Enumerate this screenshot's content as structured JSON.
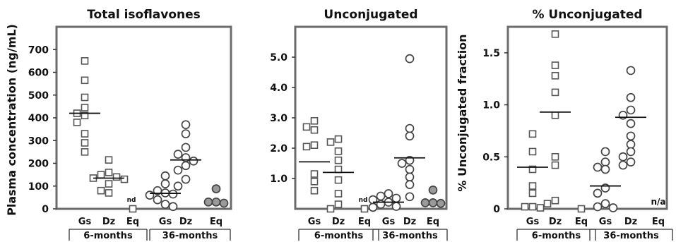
{
  "chart_data": [
    {
      "type": "scatter",
      "title": "Total isoflavones",
      "ylabel": "Plasma concentration (ng/mL)",
      "ylim": [
        0,
        800
      ],
      "yticks": [
        "0",
        "100",
        "200",
        "300",
        "400",
        "500",
        "600",
        "700"
      ],
      "groups": [
        "6-months",
        "36-months"
      ],
      "categories": [
        {
          "label": "Gs",
          "group": "6-months",
          "marker": "square",
          "median": 420,
          "values": [
            650,
            565,
            490,
            445,
            420,
            410,
            380,
            330,
            290,
            250
          ],
          "note": ""
        },
        {
          "label": "Dz",
          "group": "6-months",
          "marker": "square",
          "median": 135,
          "values": [
            215,
            160,
            150,
            140,
            135,
            130,
            110,
            80,
            70
          ],
          "note": ""
        },
        {
          "label": "Eq",
          "group": "6-months",
          "marker": "square",
          "median": null,
          "values": [
            0
          ],
          "note": "nd"
        },
        {
          "label": "Gs",
          "group": "36-months",
          "marker": "circle",
          "median": 68,
          "values": [
            145,
            110,
            80,
            70,
            65,
            60,
            40,
            20,
            10
          ],
          "note": ""
        },
        {
          "label": "Dz",
          "group": "36-months",
          "marker": "circle",
          "median": 215,
          "values": [
            370,
            330,
            270,
            240,
            225,
            210,
            190,
            170,
            130,
            100
          ],
          "note": ""
        },
        {
          "label": "Eq",
          "group": "36-months",
          "marker": "circle-filled",
          "median": null,
          "values": [
            88,
            30,
            25,
            30
          ],
          "note": ""
        }
      ]
    },
    {
      "type": "scatter",
      "title": "Unconjugated",
      "ylabel": "",
      "ylim": [
        0,
        6
      ],
      "yticks": [
        "1.0",
        "2.0",
        "3.0",
        "4.0",
        "5.0"
      ],
      "groups": [
        "6-months",
        "36-months"
      ],
      "categories": [
        {
          "label": "Gs",
          "group": "6-months",
          "marker": "square",
          "median": 1.55,
          "values": [
            2.9,
            2.7,
            2.6,
            2.1,
            2.05,
            1.15,
            0.9,
            0.6
          ],
          "note": ""
        },
        {
          "label": "Dz",
          "group": "6-months",
          "marker": "square",
          "median": 1.2,
          "values": [
            2.3,
            2.2,
            1.9,
            1.6,
            1.3,
            0.95,
            0.5,
            0.15,
            0.0
          ],
          "note": ""
        },
        {
          "label": "Eq",
          "group": "6-months",
          "marker": "square",
          "median": null,
          "values": [
            0
          ],
          "note": "nd"
        },
        {
          "label": "Gs",
          "group": "36-months",
          "marker": "circle",
          "median": 0.22,
          "values": [
            0.5,
            0.42,
            0.35,
            0.3,
            0.22,
            0.15,
            0.08,
            0.05
          ],
          "note": ""
        },
        {
          "label": "Dz",
          "group": "36-months",
          "marker": "circle",
          "median": 1.68,
          "values": [
            4.95,
            2.65,
            2.4,
            1.6,
            1.5,
            1.3,
            1.05,
            0.8,
            0.4
          ],
          "note": ""
        },
        {
          "label": "Eq",
          "group": "36-months",
          "marker": "circle-filled",
          "median": null,
          "values": [
            0.62,
            0.2,
            0.18,
            0.2
          ],
          "note": ""
        }
      ]
    },
    {
      "type": "scatter",
      "title": "% Unconjugated",
      "ylabel": "% Unconjugated fraction",
      "ylim": [
        0,
        1.75
      ],
      "yticks": [
        "0",
        "0.5",
        "1.0",
        "1.5"
      ],
      "groups": [
        "6-months",
        "36-months"
      ],
      "categories": [
        {
          "label": "Gs",
          "group": "6-months",
          "marker": "square",
          "median": 0.4,
          "values": [
            0.72,
            0.55,
            0.38,
            0.22,
            0.15,
            0.02,
            0.02,
            0.01
          ],
          "note": ""
        },
        {
          "label": "Dz",
          "group": "6-months",
          "marker": "square",
          "median": 0.93,
          "values": [
            1.68,
            1.38,
            1.28,
            1.12,
            0.9,
            0.5,
            0.42,
            0.08,
            0.05
          ],
          "note": ""
        },
        {
          "label": "Eq",
          "group": "6-months",
          "marker": "square",
          "median": null,
          "values": [
            0
          ],
          "note": ""
        },
        {
          "label": "Gs",
          "group": "36-months",
          "marker": "circle",
          "median": 0.22,
          "values": [
            0.55,
            0.45,
            0.4,
            0.38,
            0.2,
            0.15,
            0.05,
            0.02,
            0.01
          ],
          "note": ""
        },
        {
          "label": "Dz",
          "group": "36-months",
          "marker": "circle",
          "median": 0.88,
          "values": [
            1.33,
            1.07,
            0.95,
            0.9,
            0.82,
            0.7,
            0.62,
            0.55,
            0.5,
            0.45,
            0.42
          ],
          "note": ""
        },
        {
          "label": "Eq",
          "group": "36-months",
          "marker": "none",
          "median": null,
          "values": [],
          "note": "n/a"
        }
      ]
    }
  ]
}
